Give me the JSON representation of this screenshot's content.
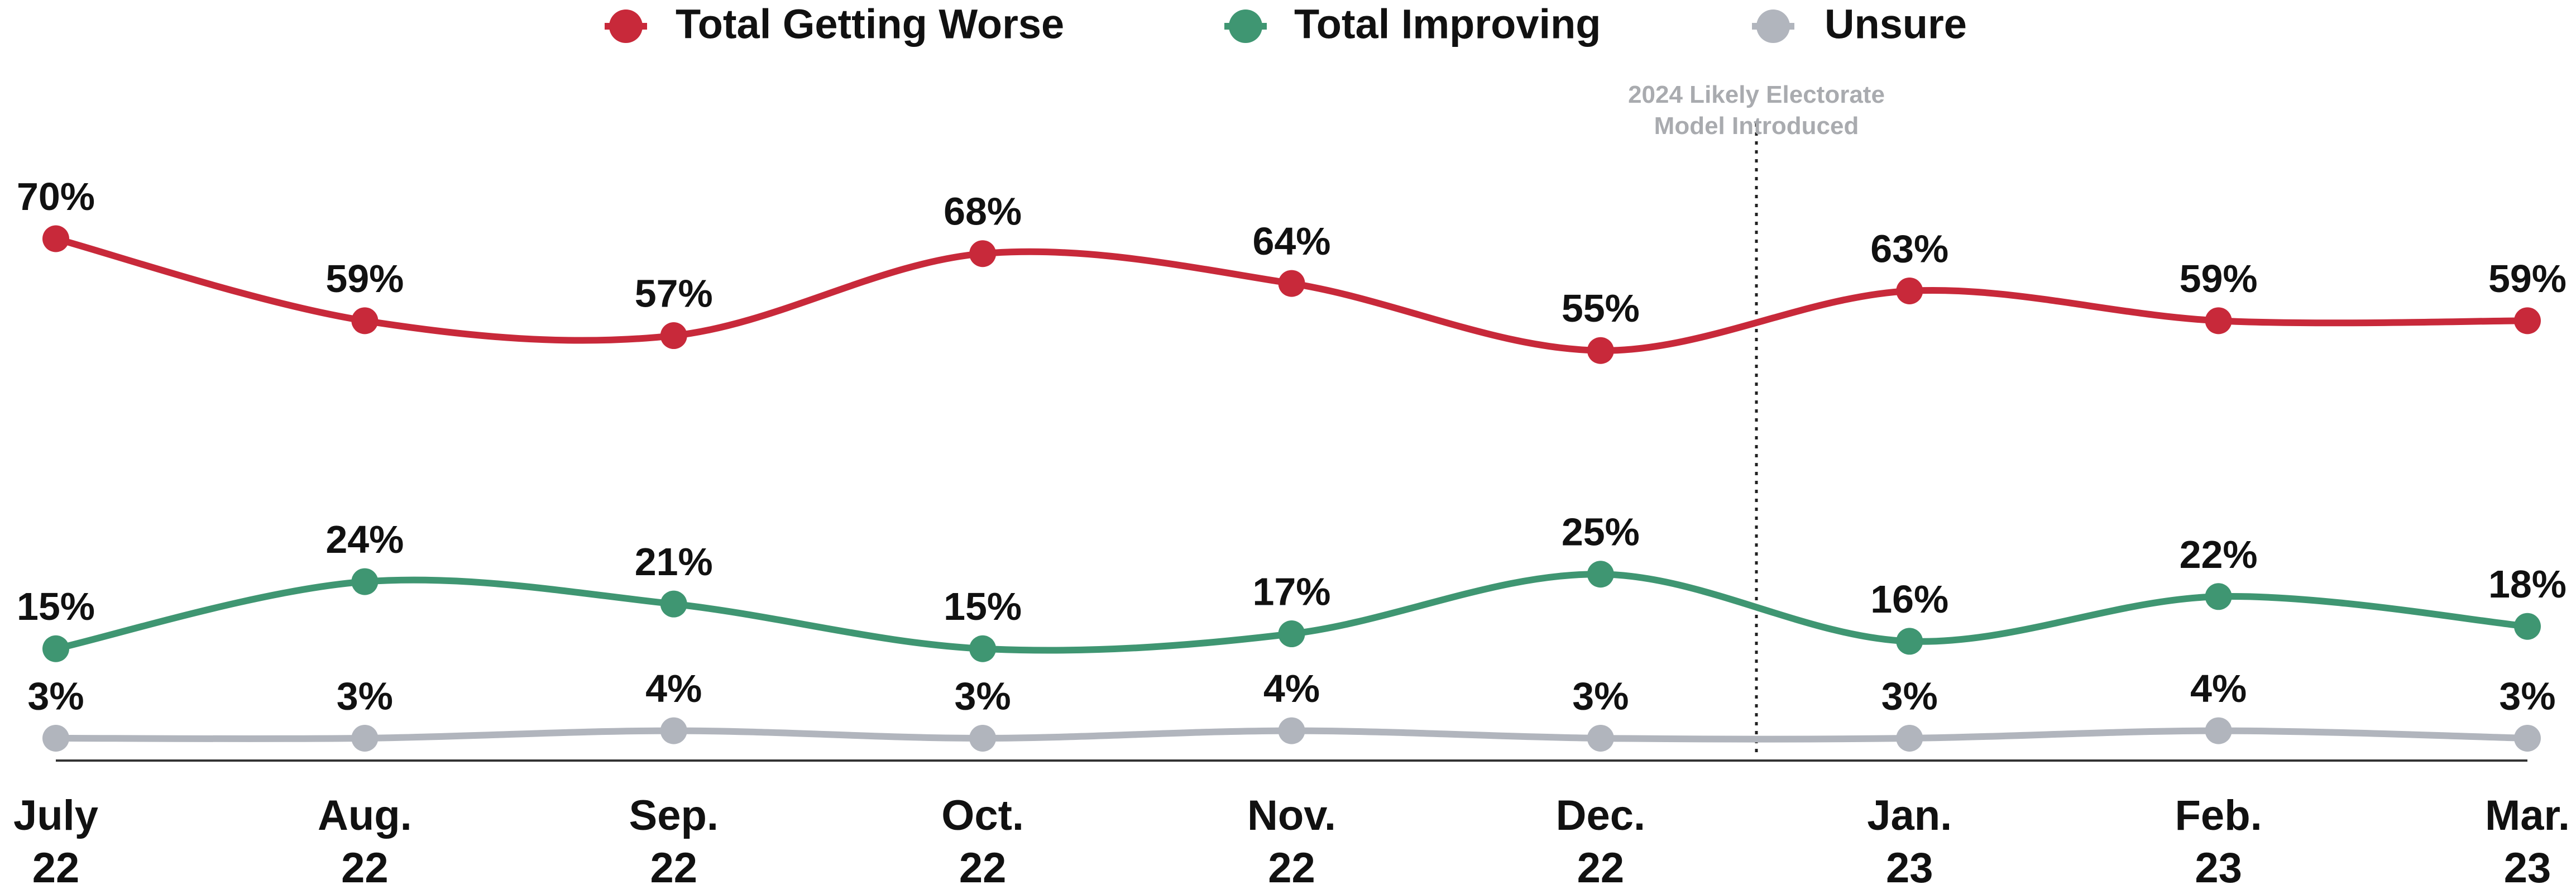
{
  "chart_data": {
    "type": "line",
    "categories": [
      "July 22",
      "Aug. 22",
      "Sep. 22",
      "Oct. 22",
      "Nov. 22",
      "Dec. 22",
      "Jan. 23",
      "Feb. 23",
      "Mar. 23"
    ],
    "series": [
      {
        "name": "Total Getting Worse",
        "color": "#c8293a",
        "values": [
          70,
          59,
          57,
          68,
          64,
          55,
          63,
          59,
          59
        ],
        "value_labels": [
          "70%",
          "59%",
          "57%",
          "68%",
          "64%",
          "55%",
          "63%",
          "59%",
          "59%"
        ]
      },
      {
        "name": "Total Improving",
        "color": "#3f9672",
        "values": [
          15,
          24,
          21,
          15,
          17,
          25,
          16,
          22,
          18
        ],
        "value_labels": [
          "15%",
          "24%",
          "21%",
          "15%",
          "17%",
          "25%",
          "16%",
          "22%",
          "18%"
        ]
      },
      {
        "name": "Unsure",
        "color": "#b1b5bd",
        "values": [
          3,
          3,
          4,
          3,
          4,
          3,
          3,
          4,
          3
        ],
        "value_labels": [
          "3%",
          "3%",
          "4%",
          "3%",
          "4%",
          "3%",
          "3%",
          "4%",
          "3%"
        ]
      }
    ],
    "annotation": "2024 Likely Electorate Model Introduced",
    "ylim": [
      0,
      80
    ],
    "legend": "top"
  }
}
